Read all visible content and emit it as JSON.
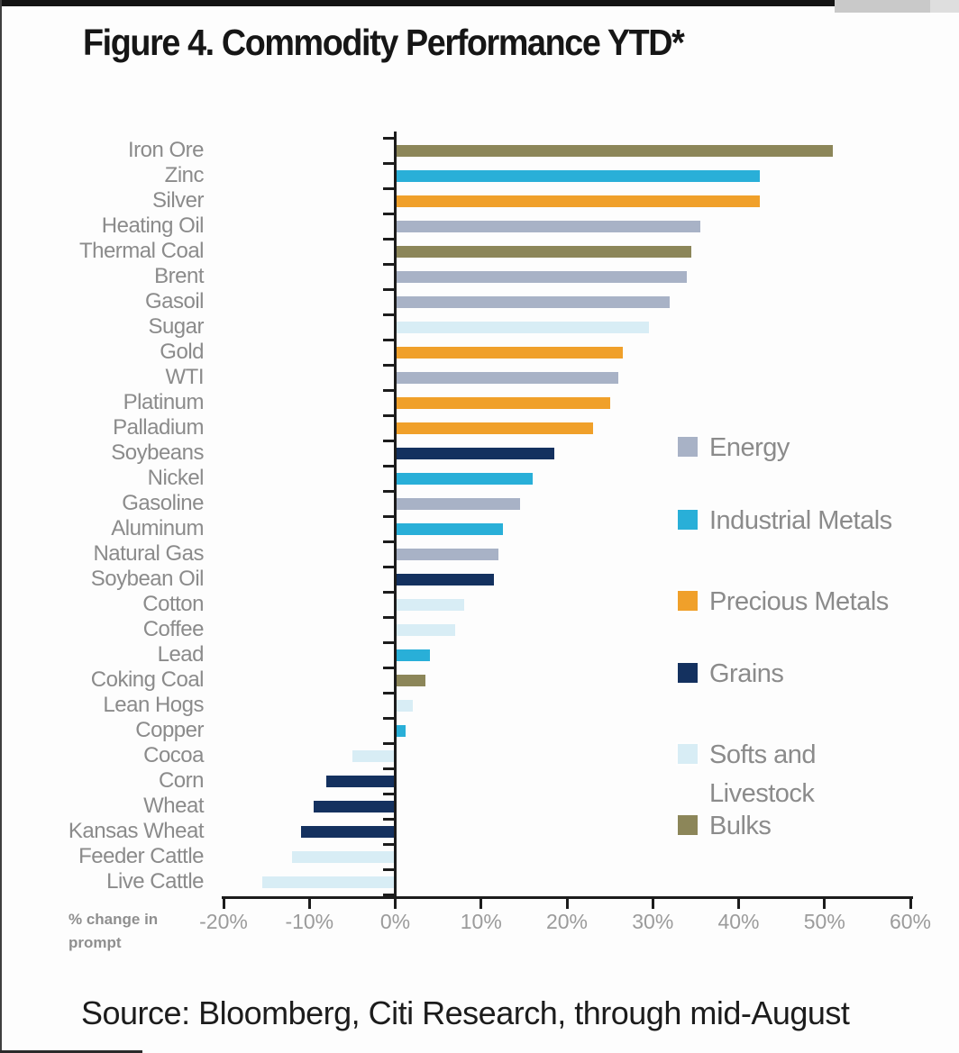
{
  "page": {
    "title": "Figure 4. Commodity Performance YTD*",
    "source": "Source: Bloomberg, Citi Research, through mid-August",
    "axis_note": "% change in prompt"
  },
  "colors": {
    "axis": "#1c1c1c",
    "category_label_gray": "#8b8b8b",
    "tick_label_gray": "#9b9b9b",
    "energy": "#a8b2c6",
    "industrial_metals": "#29afd8",
    "precious_metals": "#f0a02a",
    "grains": "#14315f",
    "softs_and_livestock": "#d8edf5",
    "bulks": "#8c8659"
  },
  "chart_data": {
    "type": "bar",
    "orientation": "horizontal",
    "title": "Figure 4. Commodity Performance YTD*",
    "xlabel": "% change in prompt",
    "ylabel": "",
    "xlim": [
      -20,
      60
    ],
    "x_ticks": [
      "-20%",
      "-10%",
      "0%",
      "10%",
      "20%",
      "30%",
      "40%",
      "50%",
      "60%"
    ],
    "x_tick_values": [
      -20,
      -10,
      0,
      10,
      20,
      30,
      40,
      50,
      60
    ],
    "grid": false,
    "legend_position": "right",
    "legend": [
      {
        "label": "Energy",
        "color": "#a8b2c6"
      },
      {
        "label": "Industrial Metals",
        "color": "#29afd8"
      },
      {
        "label": "Precious Metals",
        "color": "#f0a02a"
      },
      {
        "label": "Grains",
        "color": "#14315f"
      },
      {
        "label": "Softs and Livestock",
        "color": "#d8edf5"
      },
      {
        "label": "Bulks",
        "color": "#8c8659"
      }
    ],
    "items": [
      {
        "label": "Iron Ore",
        "value": 51,
        "group": "Bulks"
      },
      {
        "label": "Zinc",
        "value": 42.5,
        "group": "Industrial Metals"
      },
      {
        "label": "Silver",
        "value": 42.5,
        "group": "Precious Metals"
      },
      {
        "label": "Heating Oil",
        "value": 35.5,
        "group": "Energy"
      },
      {
        "label": "Thermal Coal",
        "value": 34.5,
        "group": "Bulks"
      },
      {
        "label": "Brent",
        "value": 34,
        "group": "Energy"
      },
      {
        "label": "Gasoil",
        "value": 32,
        "group": "Energy"
      },
      {
        "label": "Sugar",
        "value": 29.5,
        "group": "Softs and Livestock"
      },
      {
        "label": "Gold",
        "value": 26.5,
        "group": "Precious Metals"
      },
      {
        "label": "WTI",
        "value": 26,
        "group": "Energy"
      },
      {
        "label": "Platinum",
        "value": 25,
        "group": "Precious Metals"
      },
      {
        "label": "Palladium",
        "value": 23,
        "group": "Precious Metals"
      },
      {
        "label": "Soybeans",
        "value": 18.5,
        "group": "Grains"
      },
      {
        "label": "Nickel",
        "value": 16,
        "group": "Industrial Metals"
      },
      {
        "label": "Gasoline",
        "value": 14.5,
        "group": "Energy"
      },
      {
        "label": "Aluminum",
        "value": 12.5,
        "group": "Industrial Metals"
      },
      {
        "label": "Natural Gas",
        "value": 12,
        "group": "Energy"
      },
      {
        "label": "Soybean Oil",
        "value": 11.5,
        "group": "Grains"
      },
      {
        "label": "Cotton",
        "value": 8,
        "group": "Softs and Livestock"
      },
      {
        "label": "Coffee",
        "value": 7,
        "group": "Softs and Livestock"
      },
      {
        "label": "Lead",
        "value": 4,
        "group": "Industrial Metals"
      },
      {
        "label": "Coking Coal",
        "value": 3.5,
        "group": "Bulks"
      },
      {
        "label": "Lean Hogs",
        "value": 2,
        "group": "Softs and Livestock"
      },
      {
        "label": "Copper",
        "value": 1.2,
        "group": "Industrial Metals"
      },
      {
        "label": "Cocoa",
        "value": -5,
        "group": "Softs and Livestock"
      },
      {
        "label": "Corn",
        "value": -8,
        "group": "Grains"
      },
      {
        "label": "Wheat",
        "value": -9.5,
        "group": "Grains"
      },
      {
        "label": "Kansas Wheat",
        "value": -11,
        "group": "Grains"
      },
      {
        "label": "Feeder Cattle",
        "value": -12,
        "group": "Softs and Livestock"
      },
      {
        "label": "Live Cattle",
        "value": -15.5,
        "group": "Softs and Livestock"
      }
    ]
  }
}
